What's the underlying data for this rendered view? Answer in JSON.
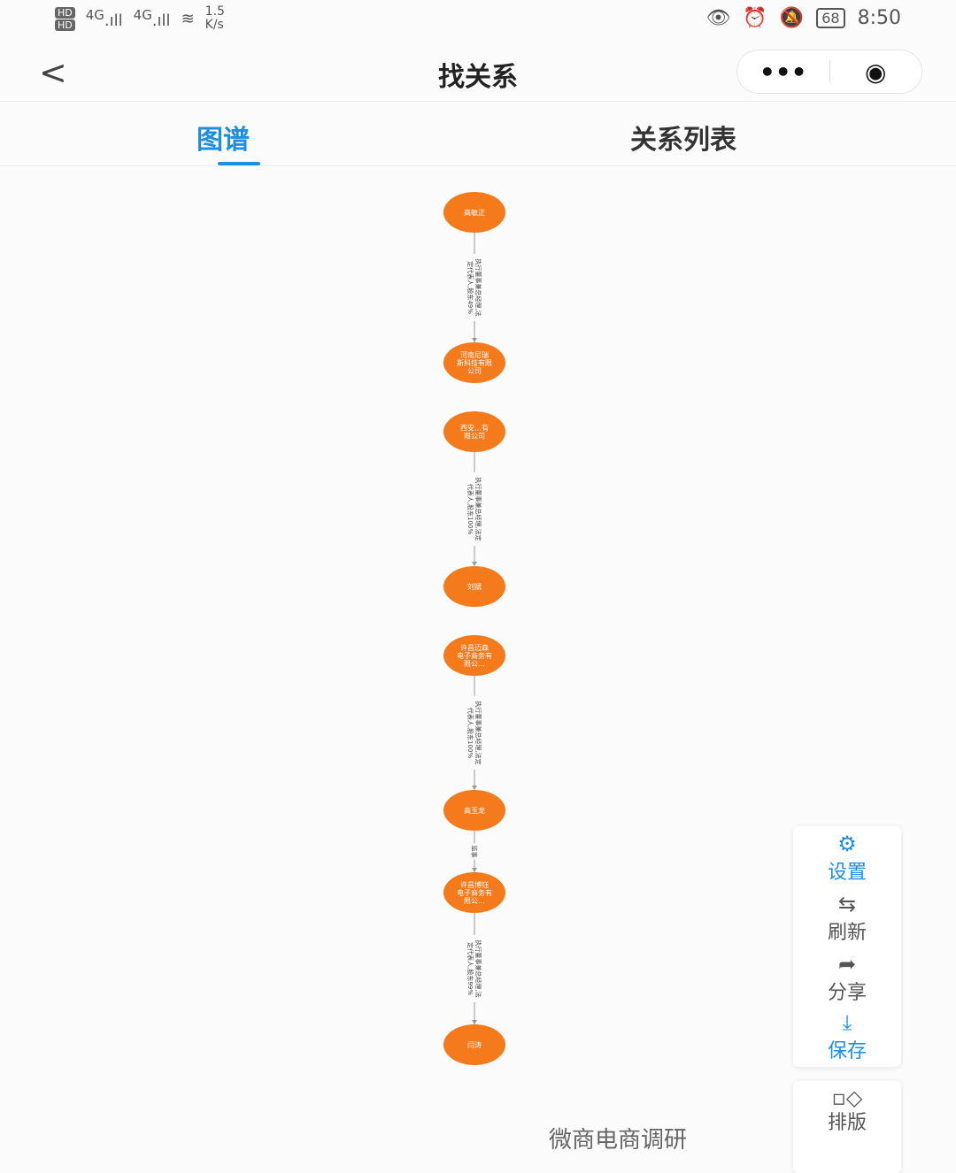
{
  "status_bar": {
    "hd1": "HD",
    "hd2": "HD",
    "net1": "4G",
    "net2": "4G",
    "speed": "1.5 K/s",
    "battery": "68",
    "time": "8:50"
  },
  "nav": {
    "title": "找关系",
    "more": "•••",
    "target": "◉"
  },
  "tabs": [
    {
      "label": "图谱",
      "active": true
    },
    {
      "label": "关系列表",
      "active": false
    }
  ],
  "colors": {
    "accent": "#1e8fe0",
    "node": "#f47a1c"
  },
  "graph": {
    "nodes": [
      "高敏正",
      "河南尼瑞斯科技有限公司",
      "西安…有限公司",
      "刘斌",
      "许昌迈森电子商务有限公…",
      "高玉龙",
      "许昌博钰电子商务有限公…",
      "闫涛"
    ],
    "edges": [
      {
        "from": 0,
        "to": 1,
        "label": "执行董事兼总经理,法定代表人,股东49%"
      },
      {
        "from": 2,
        "to": 3,
        "label": "执行董事兼总经理,法定代表人,股东100%"
      },
      {
        "from": 4,
        "to": 5,
        "label": "执行董事兼总经理,法定代表人,股东100%"
      },
      {
        "from": 5,
        "to": 6,
        "label": "监事"
      },
      {
        "from": 6,
        "to": 7,
        "label": "执行董事兼总经理,法定代表人,股东99%"
      }
    ]
  },
  "side_panel": {
    "settings": "设置",
    "refresh": "刷新",
    "share": "分享",
    "save": "保存",
    "layout": "排版"
  },
  "watermark": "微商电商调研"
}
